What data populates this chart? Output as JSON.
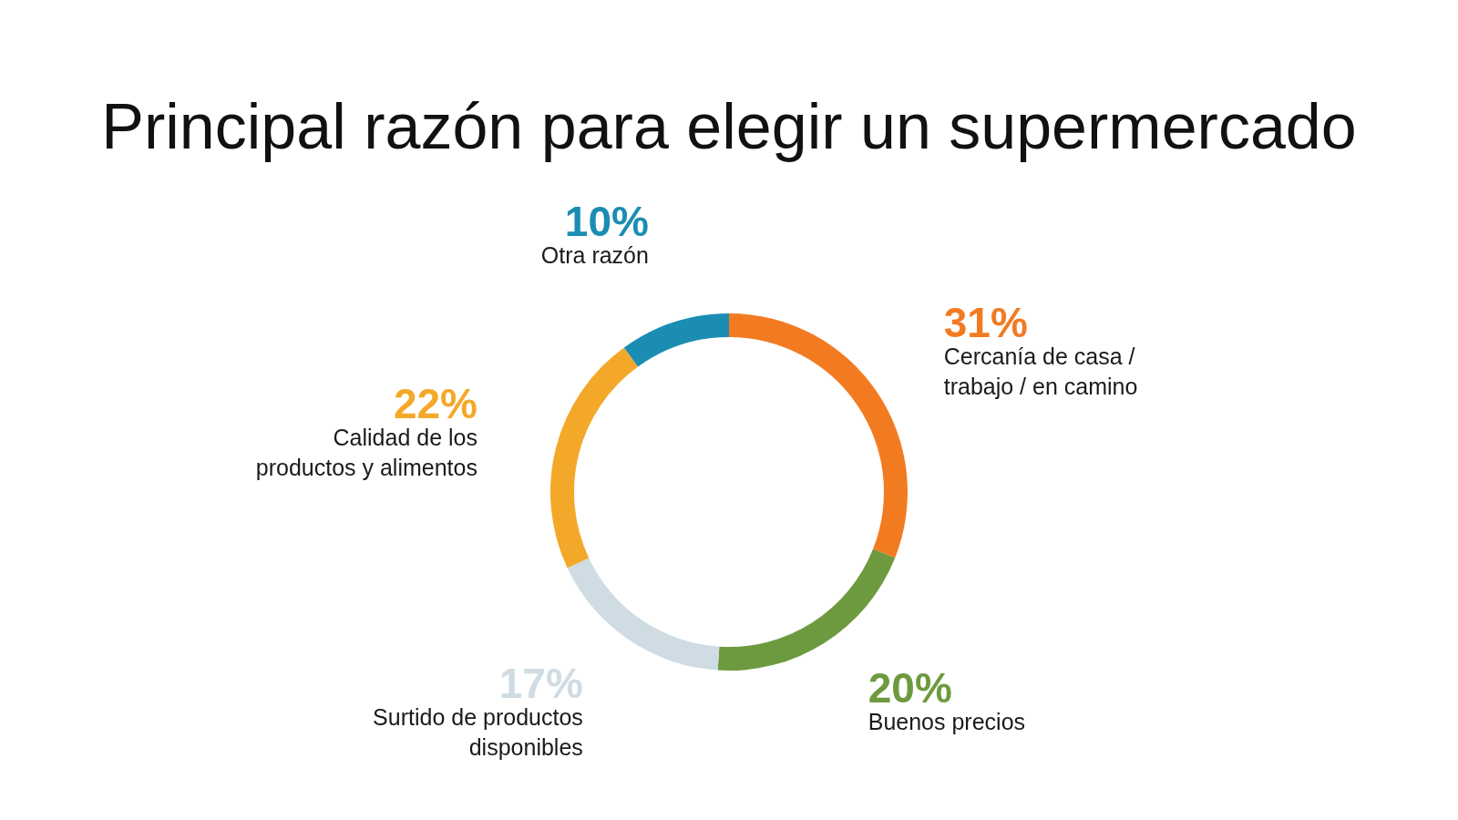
{
  "chart_data": {
    "type": "donut",
    "title": "Principal razón para elegir un supermercado",
    "categories": [
      "Cercanía de casa / trabajo / en camino",
      "Buenos precios",
      "Surtido de productos disponibles",
      "Calidad de los productos y alimentos",
      "Otra razón"
    ],
    "values": [
      31,
      20,
      17,
      22,
      10
    ],
    "value_labels": [
      "31%",
      "20%",
      "17%",
      "22%",
      "10%"
    ],
    "colors": [
      "#f27b22",
      "#6e9a3f",
      "#cfdce4",
      "#f4a82a",
      "#1b8db3"
    ]
  }
}
